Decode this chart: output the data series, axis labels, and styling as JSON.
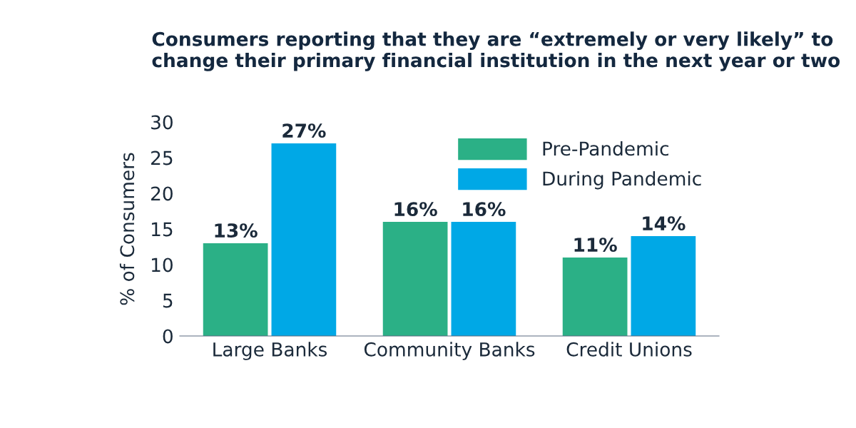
{
  "chart_data": {
    "type": "bar",
    "title": "Consumers reporting that they are “extremely or very likely” to\nchange their primary financial institution in the next year or two",
    "ylabel": "% of Consumers",
    "categories": [
      "Large Banks",
      "Community Banks",
      "Credit Unions"
    ],
    "series": [
      {
        "name": "Pre-Pandemic",
        "color": "#2bb086",
        "values": [
          13,
          16,
          11
        ],
        "value_labels": [
          "13%",
          "16%",
          "11%"
        ]
      },
      {
        "name": "During Pandemic",
        "color": "#00a8e6",
        "values": [
          27,
          16,
          14
        ],
        "value_labels": [
          "27%",
          "16%",
          "14%"
        ]
      }
    ],
    "ylim": [
      0,
      30
    ],
    "yticks": [
      0,
      5,
      10,
      15,
      20,
      25,
      30
    ],
    "grid": false,
    "legend": "top right"
  }
}
